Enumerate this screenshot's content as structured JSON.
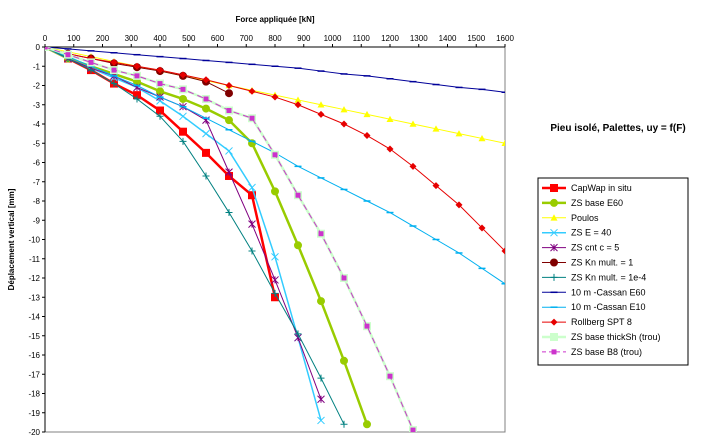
{
  "chart_data": {
    "type": "line",
    "title": "Pieu isolé, Palettes, uy = f(F)",
    "xlabel": "Force appliquée [kN]",
    "ylabel": "Déplacement vertical [mm]",
    "x_axis_position": "top",
    "xlim": [
      0,
      1600
    ],
    "ylim": [
      -20,
      0
    ],
    "x_ticks": [
      0,
      100,
      200,
      300,
      400,
      500,
      600,
      700,
      800,
      900,
      1000,
      1100,
      1200,
      1300,
      1400,
      1500,
      1600
    ],
    "y_ticks": [
      0,
      -1,
      -2,
      -3,
      -4,
      -5,
      -6,
      -7,
      -8,
      -9,
      -10,
      -11,
      -12,
      -13,
      -14,
      -15,
      -16,
      -17,
      -18,
      -19,
      -20
    ],
    "grid": false,
    "legend_placement": "right",
    "series": [
      {
        "name": "CapWap in situ",
        "color": "#ff0000",
        "marker": "square",
        "line_width": 2.5,
        "dash": "",
        "x": [
          0,
          80,
          160,
          240,
          320,
          400,
          480,
          560,
          640,
          720,
          800
        ],
        "y": [
          0,
          -0.6,
          -1.2,
          -1.9,
          -2.5,
          -3.3,
          -4.4,
          -5.5,
          -6.7,
          -7.7,
          -13
        ]
      },
      {
        "name": "ZS base E60",
        "color": "#99cc00",
        "marker": "circle",
        "line_width": 2.5,
        "dash": "",
        "x": [
          0,
          80,
          160,
          240,
          320,
          400,
          480,
          560,
          640,
          720,
          800,
          880,
          960,
          1040,
          1120
        ],
        "y": [
          0,
          -0.6,
          -1.0,
          -1.4,
          -1.8,
          -2.3,
          -2.7,
          -3.2,
          -3.8,
          -5.0,
          -7.5,
          -10.3,
          -13.2,
          -16.3,
          -19.6
        ]
      },
      {
        "name": "Poulos",
        "color": "#ffff00",
        "marker": "triangle",
        "line_width": 1,
        "dash": "",
        "x": [
          0,
          80,
          160,
          240,
          320,
          400,
          480,
          560,
          640,
          720,
          800,
          880,
          960,
          1040,
          1120,
          1200,
          1280,
          1360,
          1440,
          1520,
          1600
        ],
        "y": [
          0,
          -0.25,
          -0.5,
          -0.75,
          -1.0,
          -1.25,
          -1.5,
          -1.75,
          -2.0,
          -2.25,
          -2.5,
          -2.75,
          -3.0,
          -3.25,
          -3.5,
          -3.75,
          -4.0,
          -4.25,
          -4.5,
          -4.75,
          -5.0
        ]
      },
      {
        "name": "ZS E = 40",
        "color": "#33ccff",
        "marker": "x",
        "line_width": 1.5,
        "dash": "",
        "x": [
          0,
          80,
          160,
          240,
          320,
          400,
          480,
          560,
          640,
          720,
          800,
          880,
          960
        ],
        "y": [
          0,
          -0.6,
          -1.1,
          -1.6,
          -2.1,
          -2.8,
          -3.6,
          -4.5,
          -5.4,
          -7.3,
          -10.9,
          -15.1,
          -19.4
        ]
      },
      {
        "name": "ZS cnt c = 5",
        "color": "#800080",
        "marker": "star",
        "line_width": 1,
        "dash": "",
        "x": [
          0,
          80,
          160,
          240,
          320,
          400,
          480,
          560,
          640,
          720,
          800,
          880,
          960
        ],
        "y": [
          0,
          -0.6,
          -1.1,
          -1.5,
          -2.1,
          -2.6,
          -3.1,
          -3.8,
          -6.5,
          -9.2,
          -12.1,
          -15.1,
          -18.3
        ]
      },
      {
        "name": "ZS Kn mult. = 1",
        "color": "#800000",
        "marker": "circle",
        "line_width": 1,
        "dash": "",
        "x": [
          0,
          80,
          160,
          240,
          320,
          400,
          480,
          560,
          640
        ],
        "y": [
          0,
          -0.35,
          -0.6,
          -0.85,
          -1.05,
          -1.25,
          -1.5,
          -1.8,
          -2.4
        ]
      },
      {
        "name": "ZS Kn mult. = 1e-4",
        "color": "#008080",
        "marker": "plus",
        "line_width": 1,
        "dash": "",
        "x": [
          0,
          80,
          160,
          240,
          320,
          400,
          480,
          560,
          640,
          720,
          800,
          880,
          960,
          1040
        ],
        "y": [
          0,
          -0.6,
          -1.2,
          -1.9,
          -2.7,
          -3.6,
          -4.9,
          -6.7,
          -8.6,
          -10.6,
          -12.8,
          -14.9,
          -17.2,
          -19.6
        ]
      },
      {
        "name": "10 m -Cassan E60",
        "color": "#000099",
        "marker": "dash",
        "line_width": 1,
        "dash": "",
        "x": [
          0,
          80,
          160,
          240,
          320,
          400,
          480,
          560,
          640,
          720,
          800,
          880,
          960,
          1040,
          1120,
          1200,
          1280,
          1360,
          1440,
          1520,
          1600
        ],
        "y": [
          0,
          -0.1,
          -0.2,
          -0.3,
          -0.4,
          -0.5,
          -0.6,
          -0.7,
          -0.8,
          -0.9,
          -1.0,
          -1.1,
          -1.25,
          -1.4,
          -1.5,
          -1.65,
          -1.8,
          -1.95,
          -2.1,
          -2.2,
          -2.35
        ]
      },
      {
        "name": "10 m -Cassan E10",
        "color": "#00b0f0",
        "marker": "dash",
        "line_width": 1,
        "dash": "",
        "x": [
          0,
          80,
          160,
          240,
          320,
          400,
          480,
          560,
          640,
          720,
          800,
          880,
          960,
          1040,
          1120,
          1200,
          1280,
          1360,
          1440,
          1520,
          1600
        ],
        "y": [
          0,
          -0.5,
          -1.0,
          -1.5,
          -2.0,
          -2.6,
          -3.1,
          -3.7,
          -4.3,
          -4.9,
          -5.5,
          -6.2,
          -6.8,
          -7.4,
          -8.0,
          -8.6,
          -9.3,
          -10.0,
          -10.7,
          -11.5,
          -12.3
        ]
      },
      {
        "name": "Rollberg SPT 8",
        "color": "#e60000",
        "marker": "diamond",
        "line_width": 1,
        "dash": "",
        "x": [
          0,
          80,
          160,
          240,
          320,
          400,
          480,
          560,
          640,
          720,
          800,
          880,
          960,
          1040,
          1120,
          1200,
          1280,
          1360,
          1440,
          1520,
          1600
        ],
        "y": [
          0,
          -0.35,
          -0.6,
          -0.8,
          -1.0,
          -1.2,
          -1.45,
          -1.7,
          -2.0,
          -2.3,
          -2.6,
          -3.0,
          -3.5,
          -4.0,
          -4.6,
          -5.3,
          -6.2,
          -7.2,
          -8.2,
          -9.4,
          -10.6
        ]
      },
      {
        "name": "ZS base thickSh (trou)",
        "color": "#ccffcc",
        "marker": "square",
        "line_width": 2.5,
        "dash": "",
        "x": [
          0,
          80,
          160,
          240,
          320,
          400,
          480,
          560,
          640,
          720,
          800,
          880,
          960,
          1040,
          1120,
          1200,
          1280
        ],
        "y": [
          0,
          -0.4,
          -0.8,
          -1.2,
          -1.5,
          -1.9,
          -2.2,
          -2.7,
          -3.3,
          -3.7,
          -5.6,
          -7.7,
          -9.7,
          -12.0,
          -14.5,
          -17.1,
          -19.9
        ]
      },
      {
        "name": "ZS base B8 (trou)",
        "color": "#cc33cc",
        "marker": "square-small",
        "line_width": 1,
        "dash": "6,4",
        "x": [
          0,
          80,
          160,
          240,
          320,
          400,
          480,
          560,
          640,
          720,
          800,
          880,
          960,
          1040,
          1120,
          1200,
          1280
        ],
        "y": [
          0,
          -0.4,
          -0.8,
          -1.2,
          -1.5,
          -1.9,
          -2.2,
          -2.7,
          -3.3,
          -3.7,
          -5.6,
          -7.7,
          -9.7,
          -12.0,
          -14.5,
          -17.1,
          -19.9
        ]
      }
    ]
  }
}
